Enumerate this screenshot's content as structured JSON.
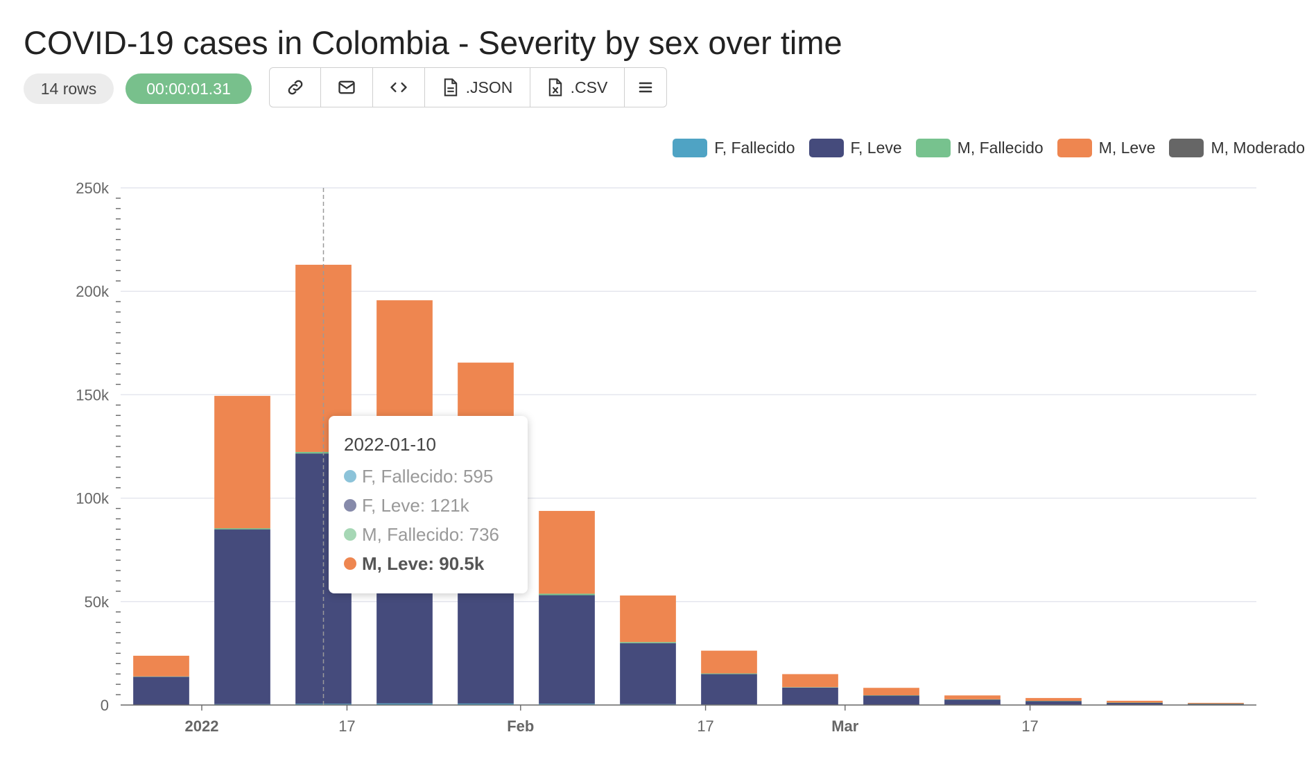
{
  "header": {
    "title": "COVID-19 cases in Colombia - Severity by sex over time",
    "rows_badge": "14 rows",
    "time_badge": "00:00:01.31"
  },
  "toolbar": {
    "json_label": ".JSON",
    "csv_label": ".CSV"
  },
  "colors": {
    "f_fallecido": "#4fa3c4",
    "f_leve": "#454b7c",
    "m_fallecido": "#77c28e",
    "m_leve": "#ee8650",
    "m_moderado": "#666666",
    "grid": "#e4e6ee",
    "axis": "#666666"
  },
  "chart_data": {
    "type": "bar",
    "stacked": true,
    "x_tick_labels": [
      {
        "label": "2022",
        "bold": true,
        "index": 0.5
      },
      {
        "label": "17",
        "bold": false,
        "index": 2.29
      },
      {
        "label": "Feb",
        "bold": true,
        "index": 4.43
      },
      {
        "label": "17",
        "bold": false,
        "index": 6.71
      },
      {
        "label": "Mar",
        "bold": true,
        "index": 8.43
      },
      {
        "label": "17",
        "bold": false,
        "index": 10.71
      }
    ],
    "y_ticks": [
      "0",
      "50k",
      "100k",
      "150k",
      "200k",
      "250k"
    ],
    "ylim": [
      0,
      250000
    ],
    "grid": true,
    "legend_position": "top-right",
    "categories": [
      "2021-12-27",
      "2022-01-03",
      "2022-01-10",
      "2022-01-17",
      "2022-01-24",
      "2022-01-31",
      "2022-02-07",
      "2022-02-14",
      "2022-02-21",
      "2022-02-28",
      "2022-03-07",
      "2022-03-14",
      "2022-03-21",
      "2022-03-28"
    ],
    "series": [
      {
        "name": "F, Fallecido",
        "color_key": "f_fallecido",
        "values": [
          150,
          420,
          595,
          760,
          700,
          600,
          420,
          250,
          150,
          90,
          60,
          40,
          25,
          15
        ]
      },
      {
        "name": "F, Leve",
        "color_key": "f_leve",
        "values": [
          13500,
          84500,
          121000,
          114000,
          96000,
          52500,
          29500,
          14700,
          8300,
          4500,
          2600,
          1900,
          1100,
          600
        ]
      },
      {
        "name": "M, Fallecido",
        "color_key": "m_fallecido",
        "values": [
          170,
          520,
          736,
          900,
          820,
          720,
          520,
          320,
          180,
          110,
          70,
          45,
          30,
          18
        ]
      },
      {
        "name": "M, Leve",
        "color_key": "m_leve",
        "values": [
          10000,
          64000,
          90500,
          80000,
          68000,
          40000,
          22500,
          11000,
          6300,
          3600,
          1900,
          1400,
          900,
          400
        ]
      },
      {
        "name": "M, Moderado",
        "color_key": "m_moderado",
        "values": [
          0,
          0,
          0,
          0,
          0,
          0,
          0,
          0,
          0,
          0,
          0,
          0,
          0,
          0
        ]
      }
    ],
    "hover_index": 2
  },
  "tooltip": {
    "date": "2022-01-10",
    "rows": [
      {
        "text": "F, Fallecido: 595",
        "color_key": "f_fallecido",
        "active": false
      },
      {
        "text": "F, Leve: 121k",
        "color_key": "f_leve",
        "active": false
      },
      {
        "text": "M, Fallecido: 736",
        "color_key": "m_fallecido",
        "active": false
      },
      {
        "text": "M, Leve: 90.5k",
        "color_key": "m_leve",
        "active": true
      }
    ]
  }
}
